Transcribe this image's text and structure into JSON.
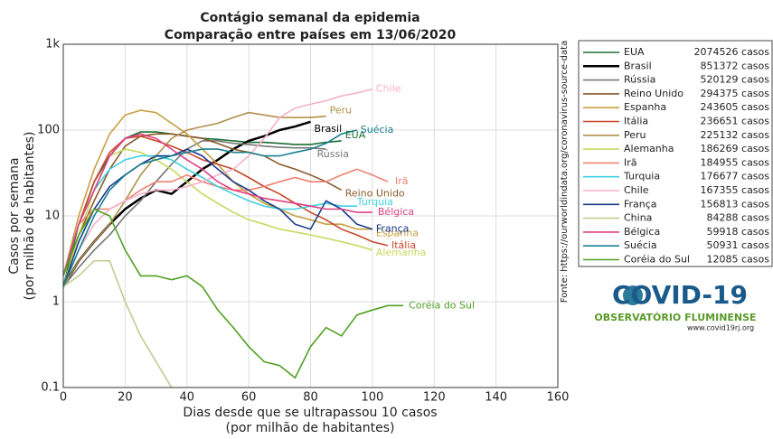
{
  "chart_data": {
    "type": "line",
    "title": "Contágio semanal da epidemia",
    "subtitle": "Comparação entre países em 13/06/2020",
    "xlabel": [
      "Dias desde que se ultrapassou 10 casos",
      "(por milhão de habitantes)"
    ],
    "ylabel": [
      "Casos por semana",
      "(por milhão de habitantes)"
    ],
    "log_y": true,
    "grid": true,
    "xlim": [
      0,
      160
    ],
    "xticks": [
      0,
      20,
      40,
      60,
      80,
      100,
      120,
      140,
      160
    ],
    "ylim": [
      0.1,
      1000
    ],
    "yticks": [
      {
        "value": 1000,
        "label": "1k"
      },
      100,
      10,
      1,
      0.1
    ],
    "x": [
      0,
      5,
      10,
      15,
      20,
      25,
      30,
      35,
      40,
      45,
      50,
      55,
      60,
      65,
      70,
      75,
      80,
      85,
      90,
      95,
      100,
      105,
      110
    ],
    "series": [
      {
        "name": "EUA",
        "cases": "2074526 casos",
        "color": "#1a6e35",
        "values": [
          1.5,
          8,
          25,
          50,
          80,
          95,
          95,
          90,
          85,
          80,
          78,
          75,
          72,
          72,
          70,
          68,
          68,
          72,
          75,
          null,
          null,
          null,
          null
        ]
      },
      {
        "name": "Brasil",
        "cases": "851372 casos",
        "color": "#000000",
        "values": [
          1.5,
          3,
          5,
          8,
          12,
          16,
          20,
          18,
          25,
          35,
          45,
          60,
          75,
          85,
          100,
          110,
          125,
          null,
          null,
          null,
          null,
          null,
          null
        ]
      },
      {
        "name": "Rússia",
        "cases": "520129 casos",
        "color": "#777777",
        "values": [
          1.5,
          2.5,
          4,
          6,
          10,
          15,
          25,
          40,
          60,
          75,
          75,
          70,
          68,
          65,
          63,
          62,
          62,
          60,
          null,
          null,
          null,
          null,
          null
        ]
      },
      {
        "name": "Reino Unido",
        "cases": "294375 casos",
        "color": "#8b5a2b",
        "values": [
          2,
          6,
          15,
          35,
          65,
          85,
          90,
          90,
          85,
          80,
          70,
          60,
          55,
          50,
          40,
          35,
          30,
          25,
          20,
          null,
          null,
          null,
          null
        ]
      },
      {
        "name": "Espanha",
        "cases": "243605 casos",
        "color": "#c8a040",
        "values": [
          2,
          10,
          35,
          90,
          150,
          170,
          160,
          120,
          90,
          60,
          40,
          25,
          18,
          14,
          12,
          10,
          9,
          8,
          8,
          7,
          7,
          null,
          null
        ]
      },
      {
        "name": "Itália",
        "cases": "236651 casos",
        "color": "#c8462a",
        "values": [
          2,
          8,
          25,
          55,
          80,
          85,
          75,
          65,
          55,
          45,
          40,
          35,
          28,
          22,
          18,
          14,
          11,
          9,
          7,
          6,
          5,
          4.5,
          null
        ]
      },
      {
        "name": "Peru",
        "cases": "225132 casos",
        "color": "#b0904a",
        "values": [
          1.5,
          3,
          5,
          8,
          15,
          30,
          50,
          80,
          100,
          110,
          120,
          140,
          160,
          150,
          140,
          140,
          140,
          145,
          null,
          null,
          null,
          null,
          null
        ]
      },
      {
        "name": "Alemanha",
        "cases": "186269 casos",
        "color": "#c8d860",
        "values": [
          1.5,
          6,
          20,
          50,
          60,
          55,
          45,
          35,
          25,
          18,
          14,
          11,
          9,
          8,
          7,
          6.5,
          6,
          5.5,
          5,
          4.5,
          4,
          null,
          null
        ]
      },
      {
        "name": "Irã",
        "cases": "184955 casos",
        "color": "#f08070",
        "values": [
          2,
          8,
          12,
          12,
          15,
          20,
          25,
          25,
          30,
          25,
          22,
          20,
          20,
          22,
          25,
          28,
          25,
          25,
          30,
          35,
          30,
          25,
          null
        ]
      },
      {
        "name": "Turquia",
        "cases": "176677 casos",
        "color": "#40d0e0",
        "values": [
          2,
          8,
          20,
          35,
          45,
          50,
          50,
          45,
          35,
          28,
          22,
          18,
          15,
          13,
          12,
          12,
          13,
          14,
          13,
          13,
          null,
          null,
          null
        ]
      },
      {
        "name": "Chile",
        "cases": "167355 casos",
        "color": "#f8b0c8",
        "values": [
          1.5,
          4,
          8,
          12,
          15,
          18,
          20,
          20,
          22,
          25,
          30,
          35,
          50,
          80,
          140,
          180,
          200,
          220,
          250,
          270,
          300,
          null,
          null
        ]
      },
      {
        "name": "França",
        "cases": "156813 casos",
        "color": "#1a3a8a",
        "values": [
          1.5,
          5,
          12,
          22,
          30,
          40,
          50,
          50,
          60,
          50,
          35,
          25,
          20,
          15,
          12,
          8,
          7,
          15,
          12,
          8,
          7,
          null,
          null
        ]
      },
      {
        "name": "China",
        "cases": "84288 casos",
        "color": "#c0cc90",
        "values": [
          1.5,
          2,
          3,
          3,
          1,
          0.4,
          0.2,
          0.1,
          null,
          null,
          null,
          null,
          null,
          null,
          null,
          null,
          null,
          null,
          null,
          null,
          null,
          null,
          null
        ]
      },
      {
        "name": "Bélgica",
        "cases": "59918 casos",
        "color": "#e04080",
        "values": [
          2,
          8,
          20,
          50,
          80,
          90,
          80,
          60,
          45,
          35,
          25,
          20,
          18,
          16,
          15,
          14,
          13,
          12,
          12,
          11,
          11,
          null,
          null
        ]
      },
      {
        "name": "Suécia",
        "cases": "50931 casos",
        "color": "#1a8090",
        "values": [
          1.5,
          4,
          10,
          20,
          30,
          40,
          45,
          50,
          55,
          60,
          60,
          55,
          55,
          50,
          50,
          55,
          60,
          70,
          90,
          100,
          null,
          null,
          null
        ]
      },
      {
        "name": "Coréia do Sul",
        "cases": "12085 casos",
        "color": "#50a020",
        "values": [
          2,
          6,
          12,
          10,
          4,
          2,
          2,
          1.8,
          2,
          1.5,
          0.8,
          0.5,
          0.3,
          0.2,
          0.18,
          0.13,
          0.3,
          0.5,
          0.4,
          0.7,
          0.8,
          0.9,
          0.9
        ]
      }
    ],
    "source": "Fonte: https://ourworldindata.org/coronavirus-source-data",
    "logo": {
      "title": "COVID-19",
      "subtitle": "OBSERVATÓRIO FLUMINENSE",
      "url": "www.covid19rj.org"
    }
  }
}
